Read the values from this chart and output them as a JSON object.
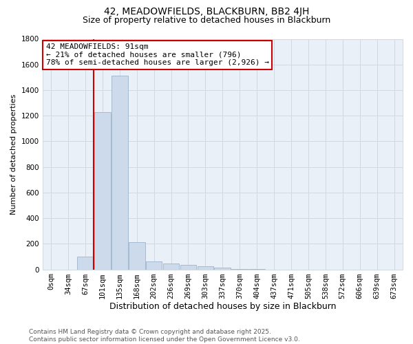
{
  "title": "42, MEADOWFIELDS, BLACKBURN, BB2 4JH",
  "subtitle": "Size of property relative to detached houses in Blackburn",
  "xlabel": "Distribution of detached houses by size in Blackburn",
  "ylabel": "Number of detached properties",
  "categories": [
    "0sqm",
    "34sqm",
    "67sqm",
    "101sqm",
    "135sqm",
    "168sqm",
    "202sqm",
    "236sqm",
    "269sqm",
    "303sqm",
    "337sqm",
    "370sqm",
    "404sqm",
    "437sqm",
    "471sqm",
    "505sqm",
    "538sqm",
    "572sqm",
    "606sqm",
    "639sqm",
    "673sqm"
  ],
  "values": [
    0,
    0,
    100,
    1230,
    1510,
    210,
    60,
    45,
    35,
    25,
    15,
    5,
    2,
    0,
    0,
    0,
    0,
    0,
    0,
    0,
    0
  ],
  "bar_color": "#ccdaeb",
  "bar_edgecolor": "#9ab4cc",
  "red_line_index": 2,
  "annotation_line1": "42 MEADOWFIELDS: 91sqm",
  "annotation_line2": "← 21% of detached houses are smaller (796)",
  "annotation_line3": "78% of semi-detached houses are larger (2,926) →",
  "annotation_box_edgecolor": "#cc0000",
  "annotation_box_facecolor": "#ffffff",
  "red_line_color": "#cc0000",
  "ylim": [
    0,
    1800
  ],
  "yticks": [
    0,
    200,
    400,
    600,
    800,
    1000,
    1200,
    1400,
    1600,
    1800
  ],
  "grid_color": "#d0d8e0",
  "background_color": "#ffffff",
  "footnote": "Contains HM Land Registry data © Crown copyright and database right 2025.\nContains public sector information licensed under the Open Government Licence v3.0.",
  "title_fontsize": 10,
  "subtitle_fontsize": 9,
  "xlabel_fontsize": 9,
  "ylabel_fontsize": 8,
  "tick_fontsize": 7.5,
  "footnote_fontsize": 6.5,
  "annotation_fontsize": 8
}
